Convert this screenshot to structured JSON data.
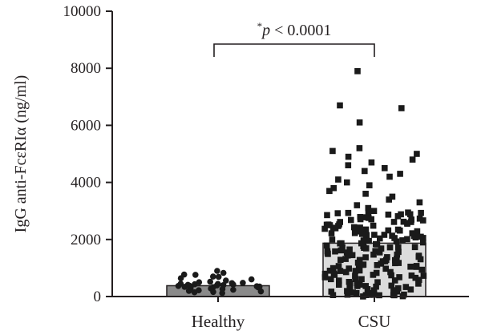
{
  "chart_data": {
    "type": "bar",
    "ylabel": "IgG anti-FcεRIα (ng/ml)",
    "ylim": [
      0,
      10000
    ],
    "yticks": [
      "0",
      "2000",
      "4000",
      "6000",
      "8000",
      "10000"
    ],
    "categories": [
      "Healthy",
      "CSU"
    ],
    "bar_means": [
      380,
      1870
    ],
    "bar_colors": [
      "#8a8a8a",
      "#dcdcdc"
    ],
    "point_color": "#1a1a1a",
    "annotation": {
      "star": "*",
      "p_symbol": "p",
      "rest": " < 0.0001",
      "between": [
        "Healthy",
        "CSU"
      ]
    },
    "healthy_points": [
      900,
      830,
      770,
      760,
      700,
      690,
      640,
      600,
      560,
      520,
      500,
      480,
      470,
      450,
      440,
      430,
      420,
      410,
      400,
      390,
      380,
      370,
      360,
      350,
      340,
      330,
      320,
      300,
      280,
      260,
      240,
      220,
      200,
      180,
      160,
      150,
      120
    ],
    "csu_points": [
      7900,
      6700,
      6600,
      6100,
      5200,
      5100,
      5000,
      4900,
      4800,
      4700,
      4600,
      4500,
      4400,
      4300,
      4200,
      4100,
      4000,
      3900,
      3800,
      3700,
      3600,
      3500,
      3400,
      3300,
      3200,
      3100,
      3000,
      2950,
      2900,
      2850,
      2800,
      2750,
      2700,
      2650,
      2600,
      2550,
      2500,
      2450,
      2400,
      2350,
      2300,
      2250,
      2200,
      2150,
      2100,
      2050,
      2000,
      1950,
      1900,
      1850,
      1800,
      1750,
      1700,
      1650,
      1600,
      1550,
      1500,
      1450,
      1400,
      1350,
      1300,
      1250,
      1200,
      1150,
      1100,
      1050,
      1000,
      950,
      900,
      850,
      800,
      750,
      700,
      650,
      600,
      550,
      500,
      450,
      400,
      350,
      300,
      250,
      200,
      150,
      100,
      50,
      30,
      20
    ]
  }
}
